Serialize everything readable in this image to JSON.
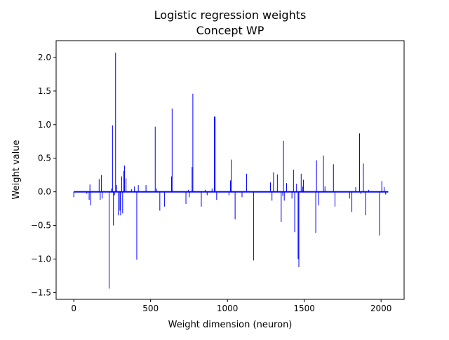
{
  "chart_data": {
    "type": "bar",
    "title": "Logistic regression weights",
    "subtitle": "Concept WP",
    "xlabel": "Weight dimension (neuron)",
    "ylabel": "Weight value",
    "xlim": [
      -115,
      2150
    ],
    "ylim": [
      -1.6,
      2.25
    ],
    "xticks": [
      {
        "value": 0,
        "label": "0"
      },
      {
        "value": 500,
        "label": "500"
      },
      {
        "value": 1000,
        "label": "1000"
      },
      {
        "value": 1500,
        "label": "1500"
      },
      {
        "value": 2000,
        "label": "2000"
      }
    ],
    "yticks": [
      {
        "value": -1.5,
        "label": "−1.5"
      },
      {
        "value": -1.0,
        "label": "−1.0"
      },
      {
        "value": -0.5,
        "label": "−0.5"
      },
      {
        "value": 0.0,
        "label": "0.0"
      },
      {
        "value": 0.5,
        "label": "0.5"
      },
      {
        "value": 1.0,
        "label": "1.0"
      },
      {
        "value": 1.5,
        "label": "1.5"
      },
      {
        "value": 2.0,
        "label": "2.0"
      }
    ],
    "grid": false,
    "bar_color": "#0000ff",
    "baseline": {
      "x_start": 0,
      "x_end": 2047,
      "value": 0
    },
    "bars": [
      {
        "x": 0,
        "value": -0.08
      },
      {
        "x": 85,
        "value": -0.03
      },
      {
        "x": 100,
        "value": -0.12
      },
      {
        "x": 105,
        "value": 0.11
      },
      {
        "x": 110,
        "value": -0.2
      },
      {
        "x": 165,
        "value": 0.19
      },
      {
        "x": 172,
        "value": -0.12
      },
      {
        "x": 180,
        "value": 0.25
      },
      {
        "x": 185,
        "value": -0.1
      },
      {
        "x": 230,
        "value": -1.44
      },
      {
        "x": 245,
        "value": 0.05
      },
      {
        "x": 252,
        "value": 0.99
      },
      {
        "x": 258,
        "value": -0.5
      },
      {
        "x": 265,
        "value": -0.05
      },
      {
        "x": 272,
        "value": 2.07
      },
      {
        "x": 280,
        "value": 0.1
      },
      {
        "x": 290,
        "value": -0.35
      },
      {
        "x": 300,
        "value": -0.28
      },
      {
        "x": 305,
        "value": -0.35
      },
      {
        "x": 312,
        "value": 0.23
      },
      {
        "x": 318,
        "value": -0.32
      },
      {
        "x": 325,
        "value": 0.31
      },
      {
        "x": 330,
        "value": 0.39
      },
      {
        "x": 340,
        "value": 0.2
      },
      {
        "x": 375,
        "value": 0.04
      },
      {
        "x": 395,
        "value": 0.08
      },
      {
        "x": 410,
        "value": -1.01
      },
      {
        "x": 420,
        "value": 0.1
      },
      {
        "x": 470,
        "value": 0.1
      },
      {
        "x": 530,
        "value": 0.97
      },
      {
        "x": 540,
        "value": 0.05
      },
      {
        "x": 560,
        "value": -0.28
      },
      {
        "x": 590,
        "value": -0.22
      },
      {
        "x": 636,
        "value": 0.23
      },
      {
        "x": 640,
        "value": 1.24
      },
      {
        "x": 730,
        "value": -0.18
      },
      {
        "x": 745,
        "value": 0.03
      },
      {
        "x": 752,
        "value": -0.08
      },
      {
        "x": 770,
        "value": 0.37
      },
      {
        "x": 775,
        "value": 1.46
      },
      {
        "x": 830,
        "value": -0.22
      },
      {
        "x": 855,
        "value": 0.03
      },
      {
        "x": 868,
        "value": -0.05
      },
      {
        "x": 900,
        "value": 0.05
      },
      {
        "x": 915,
        "value": 1.12
      },
      {
        "x": 920,
        "value": 1.12
      },
      {
        "x": 930,
        "value": -0.12
      },
      {
        "x": 1010,
        "value": -0.05
      },
      {
        "x": 1020,
        "value": 0.17
      },
      {
        "x": 1025,
        "value": 0.48
      },
      {
        "x": 1050,
        "value": -0.41
      },
      {
        "x": 1095,
        "value": -0.08
      },
      {
        "x": 1125,
        "value": 0.27
      },
      {
        "x": 1170,
        "value": -1.02
      },
      {
        "x": 1280,
        "value": 0.14
      },
      {
        "x": 1290,
        "value": -0.13
      },
      {
        "x": 1300,
        "value": 0.29
      },
      {
        "x": 1325,
        "value": 0.26
      },
      {
        "x": 1350,
        "value": -0.45
      },
      {
        "x": 1360,
        "value": -0.06
      },
      {
        "x": 1365,
        "value": 0.76
      },
      {
        "x": 1370,
        "value": -0.13
      },
      {
        "x": 1385,
        "value": 0.13
      },
      {
        "x": 1420,
        "value": -0.1
      },
      {
        "x": 1430,
        "value": 0.33
      },
      {
        "x": 1438,
        "value": -0.6
      },
      {
        "x": 1450,
        "value": 0.12
      },
      {
        "x": 1460,
        "value": -1.0
      },
      {
        "x": 1465,
        "value": -1.12
      },
      {
        "x": 1480,
        "value": 0.27
      },
      {
        "x": 1490,
        "value": 0.08
      },
      {
        "x": 1495,
        "value": 0.18
      },
      {
        "x": 1575,
        "value": -0.61
      },
      {
        "x": 1580,
        "value": 0.47
      },
      {
        "x": 1595,
        "value": -0.2
      },
      {
        "x": 1625,
        "value": 0.54
      },
      {
        "x": 1635,
        "value": 0.08
      },
      {
        "x": 1690,
        "value": 0.41
      },
      {
        "x": 1700,
        "value": -0.22
      },
      {
        "x": 1795,
        "value": -0.1
      },
      {
        "x": 1810,
        "value": -0.3
      },
      {
        "x": 1835,
        "value": 0.07
      },
      {
        "x": 1860,
        "value": 0.87
      },
      {
        "x": 1868,
        "value": -0.03
      },
      {
        "x": 1885,
        "value": 0.42
      },
      {
        "x": 1900,
        "value": -0.35
      },
      {
        "x": 1920,
        "value": 0.03
      },
      {
        "x": 1990,
        "value": -0.65
      },
      {
        "x": 2005,
        "value": 0.16
      },
      {
        "x": 2020,
        "value": 0.07
      },
      {
        "x": 2030,
        "value": -0.04
      }
    ]
  }
}
